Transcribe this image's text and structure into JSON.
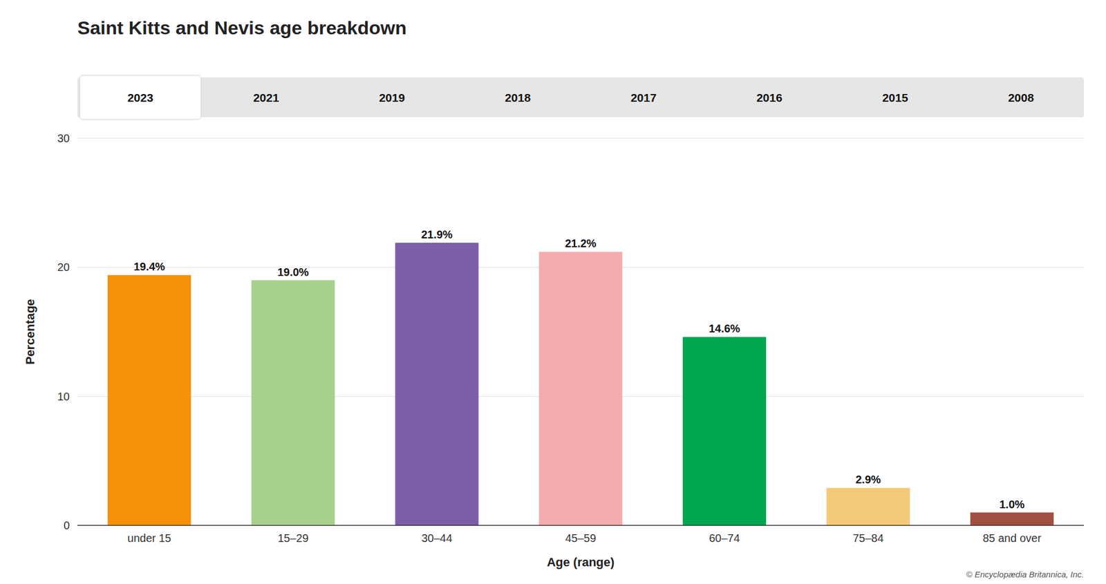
{
  "chart_data": {
    "type": "bar",
    "title": "Saint Kitts and Nevis age breakdown",
    "categories": [
      "under 15",
      "15–29",
      "30–44",
      "45–59",
      "60–74",
      "75–84",
      "85 and over"
    ],
    "values": [
      19.4,
      19.0,
      21.9,
      21.2,
      14.6,
      2.9,
      1.0
    ],
    "value_labels": [
      "19.4%",
      "19.0%",
      "21.9%",
      "21.2%",
      "14.6%",
      "2.9%",
      "1.0%"
    ],
    "colors": [
      "#F5920A",
      "#A8D08D",
      "#7B5EA7",
      "#F4ACAC",
      "#00A550",
      "#F5C97A",
      "#A05040"
    ],
    "xlabel": "Age (range)",
    "ylabel": "Percentage",
    "ylim": [
      0,
      30
    ],
    "yticks": [
      0,
      10,
      20,
      30
    ],
    "grid": true,
    "data_labels": true,
    "annotations": [
      "2023",
      "2021",
      "2019",
      "2018",
      "2017",
      "2016",
      "2015",
      "2008",
      "© Encyclopædia Britannica, Inc."
    ]
  }
}
